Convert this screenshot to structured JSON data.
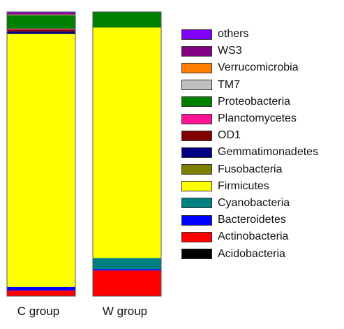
{
  "chart_data": {
    "type": "bar",
    "stacked": true,
    "normalized": true,
    "categories": [
      "C group",
      "W group"
    ],
    "series": [
      {
        "name": "Acidobacteria",
        "color": "#000000",
        "values": [
          0.1,
          0.0
        ]
      },
      {
        "name": "Actinobacteria",
        "color": "#ff0000",
        "values": [
          1.8,
          9.0
        ]
      },
      {
        "name": "Bacteroidetes",
        "color": "#0000ff",
        "values": [
          1.2,
          0.5
        ]
      },
      {
        "name": "Cyanobacteria",
        "color": "#008080",
        "values": [
          0.0,
          3.9
        ]
      },
      {
        "name": "Firmicutes",
        "color": "#ffff00",
        "values": [
          84.8,
          80.8
        ]
      },
      {
        "name": "Fusobacteria",
        "color": "#808000",
        "values": [
          0.0,
          0.0
        ]
      },
      {
        "name": "Gemmatimonadetes",
        "color": "#000080",
        "values": [
          0.8,
          0.0
        ]
      },
      {
        "name": "OD1",
        "color": "#800000",
        "values": [
          0.6,
          0.0
        ]
      },
      {
        "name": "Planctomycetes",
        "color": "#ff1493",
        "values": [
          0.3,
          0.0
        ]
      },
      {
        "name": "Proteobacteria",
        "color": "#008000",
        "values": [
          4.6,
          5.5
        ]
      },
      {
        "name": "TM7",
        "color": "#c0c0c0",
        "values": [
          0.1,
          0.0
        ]
      },
      {
        "name": "Verrucomicrobia",
        "color": "#ff8000",
        "values": [
          0.1,
          0.0
        ]
      },
      {
        "name": "WS3",
        "color": "#800080",
        "values": [
          0.6,
          0.0
        ]
      },
      {
        "name": "others",
        "color": "#8000ff",
        "values": [
          0.3,
          0.0
        ]
      }
    ],
    "legend_order": [
      "others",
      "WS3",
      "Verrucomicrobia",
      "TM7",
      "Proteobacteria",
      "Planctomycetes",
      "OD1",
      "Gemmatimonadetes",
      "Fusobacteria",
      "Firmicutes",
      "Cyanobacteria",
      "Bacteroidetes",
      "Actinobacteria",
      "Acidobacteria"
    ],
    "legend_position": "right",
    "ylim": [
      0,
      100
    ],
    "grid": false,
    "title": "",
    "xlabel": "",
    "ylabel": ""
  }
}
